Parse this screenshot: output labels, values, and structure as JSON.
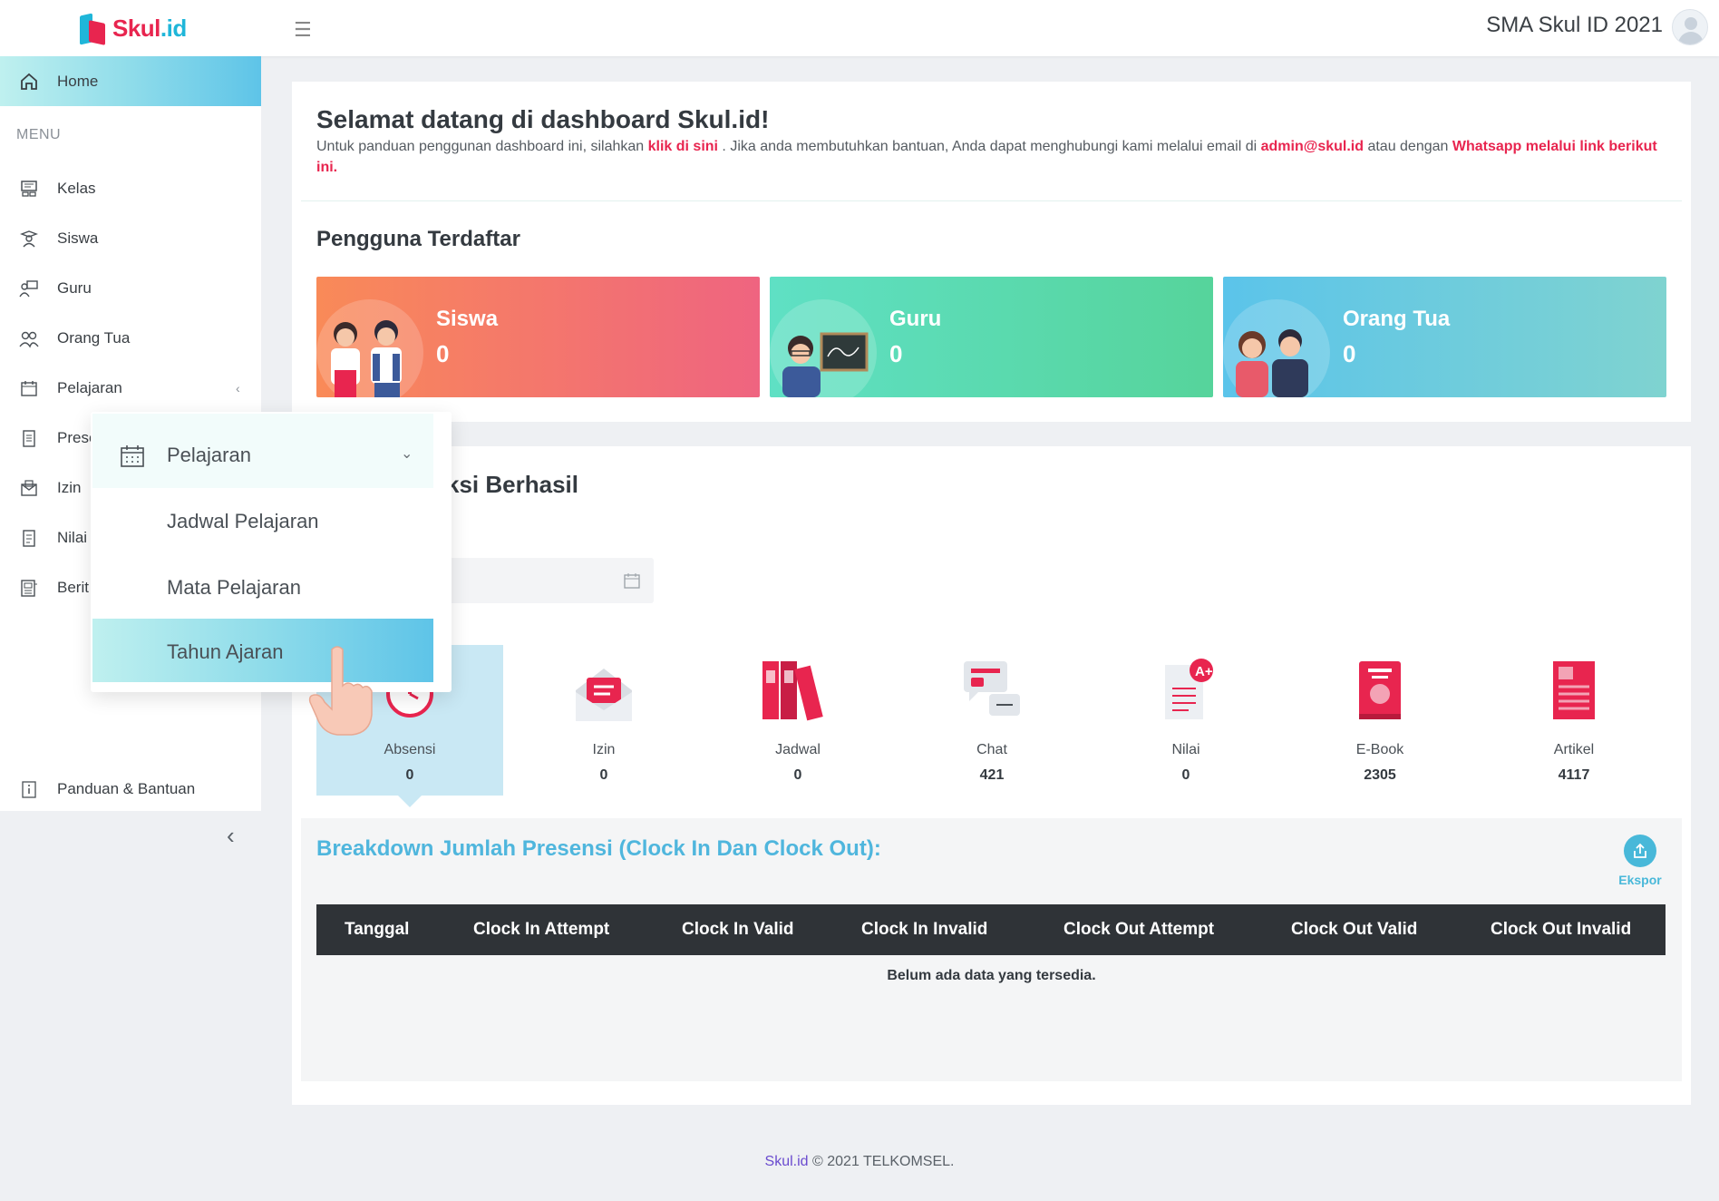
{
  "header": {
    "logo_text_1": "Skul",
    "logo_text_2": ".id",
    "school_name": "SMA Skul ID 2021"
  },
  "sidebar": {
    "home": "Home",
    "menu_heading": "MENU",
    "items": [
      {
        "label": "Kelas",
        "icon": "classroom-icon"
      },
      {
        "label": "Siswa",
        "icon": "student-icon"
      },
      {
        "label": "Guru",
        "icon": "teacher-icon"
      },
      {
        "label": "Orang Tua",
        "icon": "parents-icon"
      },
      {
        "label": "Pelajaran",
        "icon": "calendar-icon"
      },
      {
        "label": "Prese",
        "icon": "clipboard-icon"
      },
      {
        "label": "Izin",
        "icon": "envelope-icon"
      },
      {
        "label": "Nilai",
        "icon": "grades-icon"
      },
      {
        "label": "Berit",
        "icon": "news-icon"
      }
    ],
    "help": "Panduan & Bantuan"
  },
  "popup": {
    "header": "Pelajaran",
    "items": [
      "Jadwal Pelajaran",
      "Mata Pelajaran",
      "Tahun Ajaran"
    ],
    "selected": "Tahun Ajaran"
  },
  "welcome": {
    "title": "Selamat datang di dashboard Skul.id!",
    "text_1": "Untuk panduan penggunan dashboard ini, silahkan ",
    "link_1": "klik di sini",
    "text_2": " . Jika anda membutuhkan bantuan, Anda dapat menghubungi kami melalui email di ",
    "link_2": "admin@skul.id",
    "text_3": " atau dengan ",
    "link_3": "Whatsapp melalui link berikut ini."
  },
  "registered": {
    "title": "Pengguna Terdaftar",
    "cards": [
      {
        "label": "Siswa",
        "value": "0"
      },
      {
        "label": "Guru",
        "value": "0"
      },
      {
        "label": "Orang Tua",
        "value": "0"
      }
    ]
  },
  "transactions": {
    "title_visible": "ksi Berhasil",
    "tiles": [
      {
        "label": "Absensi",
        "value": "0"
      },
      {
        "label": "Izin",
        "value": "0"
      },
      {
        "label": "Jadwal",
        "value": "0"
      },
      {
        "label": "Chat",
        "value": "421"
      },
      {
        "label": "Nilai",
        "value": "0"
      },
      {
        "label": "E-Book",
        "value": "2305"
      },
      {
        "label": "Artikel",
        "value": "4117"
      }
    ]
  },
  "breakdown": {
    "title": "Breakdown Jumlah Presensi (Clock In Dan Clock Out):",
    "export_label": "Ekspor",
    "columns": [
      "Tanggal",
      "Clock In Attempt",
      "Clock In Valid",
      "Clock In Invalid",
      "Clock Out Attempt",
      "Clock Out Valid",
      "Clock Out Invalid"
    ],
    "empty_text": "Belum ada data yang tersedia."
  },
  "footer": {
    "brand": "Skul.id",
    "text": " © 2021 TELKOMSEL."
  },
  "colors": {
    "accent_red": "#e8254f",
    "accent_blue": "#4fb6dd",
    "sidebar_active": "#5ec4e8"
  }
}
